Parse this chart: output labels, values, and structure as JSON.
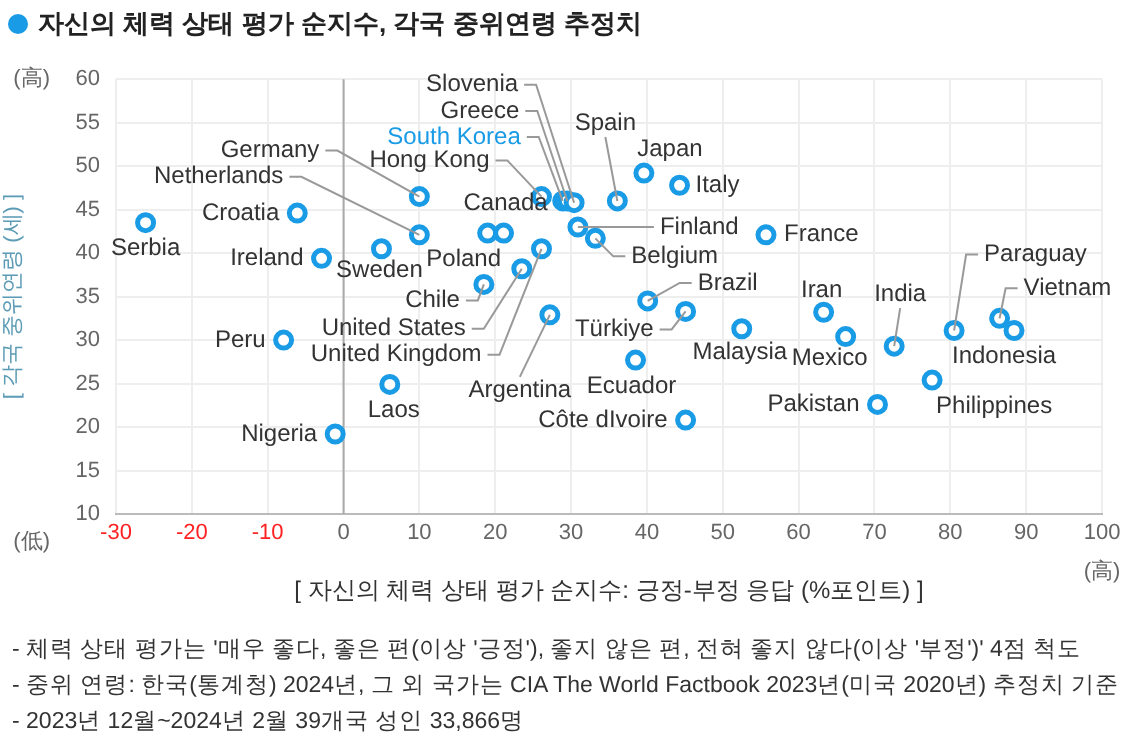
{
  "chart_data": {
    "type": "scatter",
    "title": "자신의 체력 상태 평가 순지수, 각국 중위연령 추정치",
    "xlabel": "[ 자신의 체력 상태 평가 순지수: 긍정-부정 응답 (%포인트) ]",
    "ylabel": "[ 각국 중위연령 (세) ]",
    "series": [
      {
        "color": "#1a9be6",
        "x": [
          -26.1,
          -6.1,
          -2.9,
          5.0,
          10.0,
          10.0,
          -7.9,
          -1.1,
          6.1,
          18.5,
          19.0,
          21.1,
          23.5,
          26.1,
          27.2,
          26.1,
          29.5,
          30.4,
          30.9,
          33.2,
          36.1,
          39.6,
          44.3,
          55.7,
          40.1,
          45.1,
          38.5,
          45.1,
          52.5,
          63.3,
          66.2,
          72.6,
          70.4,
          77.6,
          80.5,
          86.5,
          88.4
        ],
        "values": [
          43.5,
          44.6,
          39.4,
          40.5,
          46.5,
          42.1,
          30.0,
          19.2,
          24.9,
          36.4,
          42.3,
          42.3,
          38.2,
          40.5,
          32.9,
          46.5,
          46.0,
          45.8,
          43.0,
          41.7,
          46.0,
          49.2,
          47.8,
          42.1,
          34.5,
          33.3,
          27.7,
          20.8,
          31.3,
          33.2,
          30.4,
          29.3,
          22.6,
          25.4,
          31.1,
          32.5,
          31.1
        ]
      },
      {
        "name": "South Korea",
        "color": "#1a9be6",
        "x": [
          28.9
        ],
        "values": [
          46.0
        ]
      }
    ],
    "xlim": [
      -30,
      100
    ],
    "xticks": [
      -30,
      -20,
      -10,
      0,
      10,
      20,
      30,
      40,
      50,
      60,
      70,
      80,
      90,
      100
    ],
    "ylim": [
      10,
      60
    ],
    "yticks": [
      10,
      15,
      20,
      25,
      30,
      35,
      40,
      45,
      50,
      55,
      60
    ],
    "grid": true,
    "legend": false,
    "marker": "circle",
    "ref_lines": [
      {
        "axis": "x",
        "value": 0,
        "color": "#aaaaaa"
      }
    ],
    "annotations": [
      {
        "text": "Serbia",
        "x": -26.1,
        "y": 43.5
      },
      {
        "text": "Croatia",
        "x": -6.1,
        "y": 44.6
      },
      {
        "text": "Ireland",
        "x": -2.9,
        "y": 39.4
      },
      {
        "text": "Sweden",
        "x": 5.0,
        "y": 40.5
      },
      {
        "text": "Germany",
        "x": 10.0,
        "y": 46.5
      },
      {
        "text": "Netherlands",
        "x": 10.0,
        "y": 42.1
      },
      {
        "text": "Peru",
        "x": -7.9,
        "y": 30.0
      },
      {
        "text": "Nigeria",
        "x": -1.1,
        "y": 19.2
      },
      {
        "text": "Laos",
        "x": 6.1,
        "y": 24.9
      },
      {
        "text": "Chile",
        "x": 18.5,
        "y": 36.4
      },
      {
        "text": "Poland",
        "x": 19.0,
        "y": 42.3
      },
      {
        "text": "Canada",
        "x": 21.1,
        "y": 42.3
      },
      {
        "text": "United States",
        "x": 23.5,
        "y": 38.2
      },
      {
        "text": "United Kingdom",
        "x": 26.1,
        "y": 40.5
      },
      {
        "text": "Argentina",
        "x": 27.2,
        "y": 32.9
      },
      {
        "text": "Hong Kong",
        "x": 26.1,
        "y": 46.5
      },
      {
        "text": "Greece",
        "x": 29.5,
        "y": 46.0
      },
      {
        "text": "Slovenia",
        "x": 30.4,
        "y": 45.8
      },
      {
        "text": "Finland",
        "x": 30.9,
        "y": 43.0
      },
      {
        "text": "Belgium",
        "x": 33.2,
        "y": 41.7
      },
      {
        "text": "Spain",
        "x": 36.1,
        "y": 46.0
      },
      {
        "text": "Japan",
        "x": 39.6,
        "y": 49.2
      },
      {
        "text": "Italy",
        "x": 44.3,
        "y": 47.8
      },
      {
        "text": "France",
        "x": 55.7,
        "y": 42.1
      },
      {
        "text": "Brazil",
        "x": 40.1,
        "y": 34.5
      },
      {
        "text": "Türkiye",
        "x": 45.1,
        "y": 33.3
      },
      {
        "text": "Ecuador",
        "x": 38.5,
        "y": 27.7
      },
      {
        "text": "Côte dIvoire",
        "x": 45.1,
        "y": 20.8
      },
      {
        "text": "Malaysia",
        "x": 52.5,
        "y": 31.3
      },
      {
        "text": "Iran",
        "x": 63.3,
        "y": 33.2
      },
      {
        "text": "Mexico",
        "x": 66.2,
        "y": 30.4
      },
      {
        "text": "India",
        "x": 72.6,
        "y": 29.3
      },
      {
        "text": "Pakistan",
        "x": 70.4,
        "y": 22.6
      },
      {
        "text": "Philippines",
        "x": 77.6,
        "y": 25.4
      },
      {
        "text": "Paraguay",
        "x": 80.5,
        "y": 31.1
      },
      {
        "text": "Vietnam",
        "x": 86.5,
        "y": 32.5
      },
      {
        "text": "Indonesia",
        "x": 88.4,
        "y": 31.1
      },
      "(高)",
      "(低)",
      "(高)",
      "- 체력 상태 평가는 '매우 좋다, 좋은 편(이상 '긍정'), 좋지 않은 편, 전혀 좋지 않다(이상 '부정')' 4점 척도",
      "- 중위 연령: 한국(통계청) 2024년, 그 외 국가는 CIA The World Factbook 2023년(미국 2020년) 추정치 기준",
      "- 2023년 12월~2024년 2월 39개국 성인 33,866명"
    ]
  }
}
